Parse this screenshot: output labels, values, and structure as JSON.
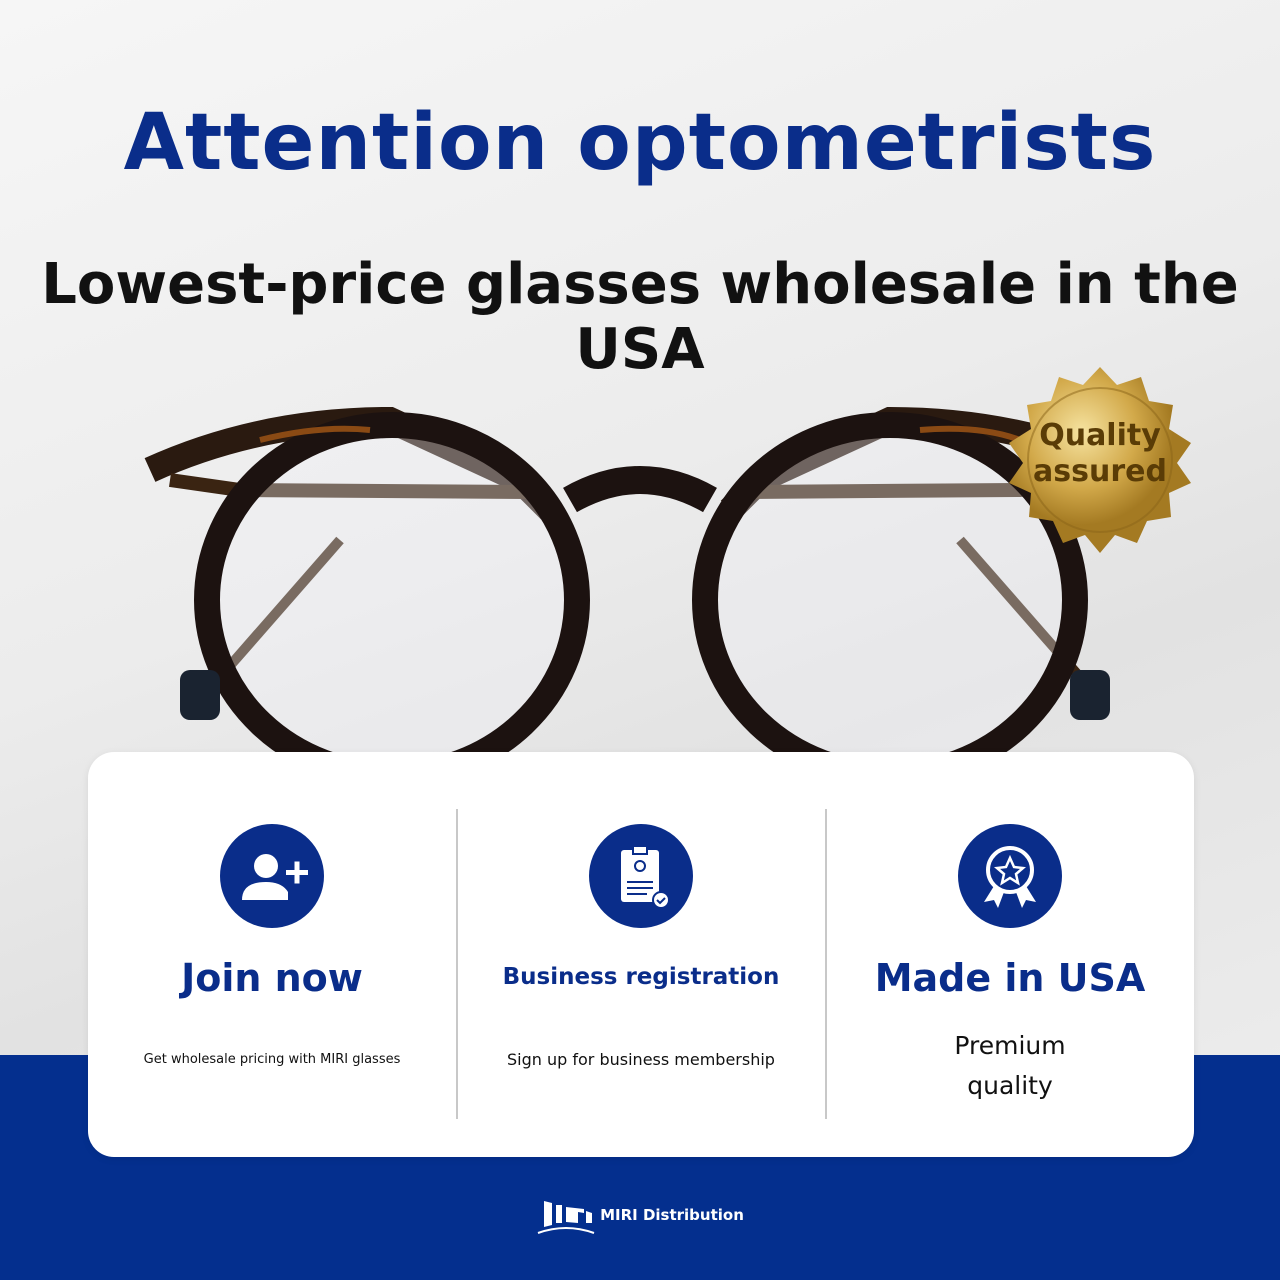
{
  "header": {
    "title": "Attention optometrists",
    "subtitle": "Lowest-price glasses wholesale in the USA"
  },
  "badge": {
    "line1": "Quality",
    "line2": "assured"
  },
  "features": [
    {
      "icon": "user-plus-icon",
      "title": "Join now",
      "text": "Get wholesale pricing with MIRI glasses"
    },
    {
      "icon": "clipboard-id-icon",
      "title": "Business registration",
      "text": "Sign up for business membership"
    },
    {
      "icon": "award-star-icon",
      "title": "Made in USA",
      "text_line1": "Premium",
      "text_line2": "quality"
    }
  ],
  "footer": {
    "brand": "MIRI Distribution"
  },
  "colors": {
    "brand_blue": "#0a2d8a",
    "band_blue": "#042f8e",
    "gold": "#c9a13b"
  }
}
